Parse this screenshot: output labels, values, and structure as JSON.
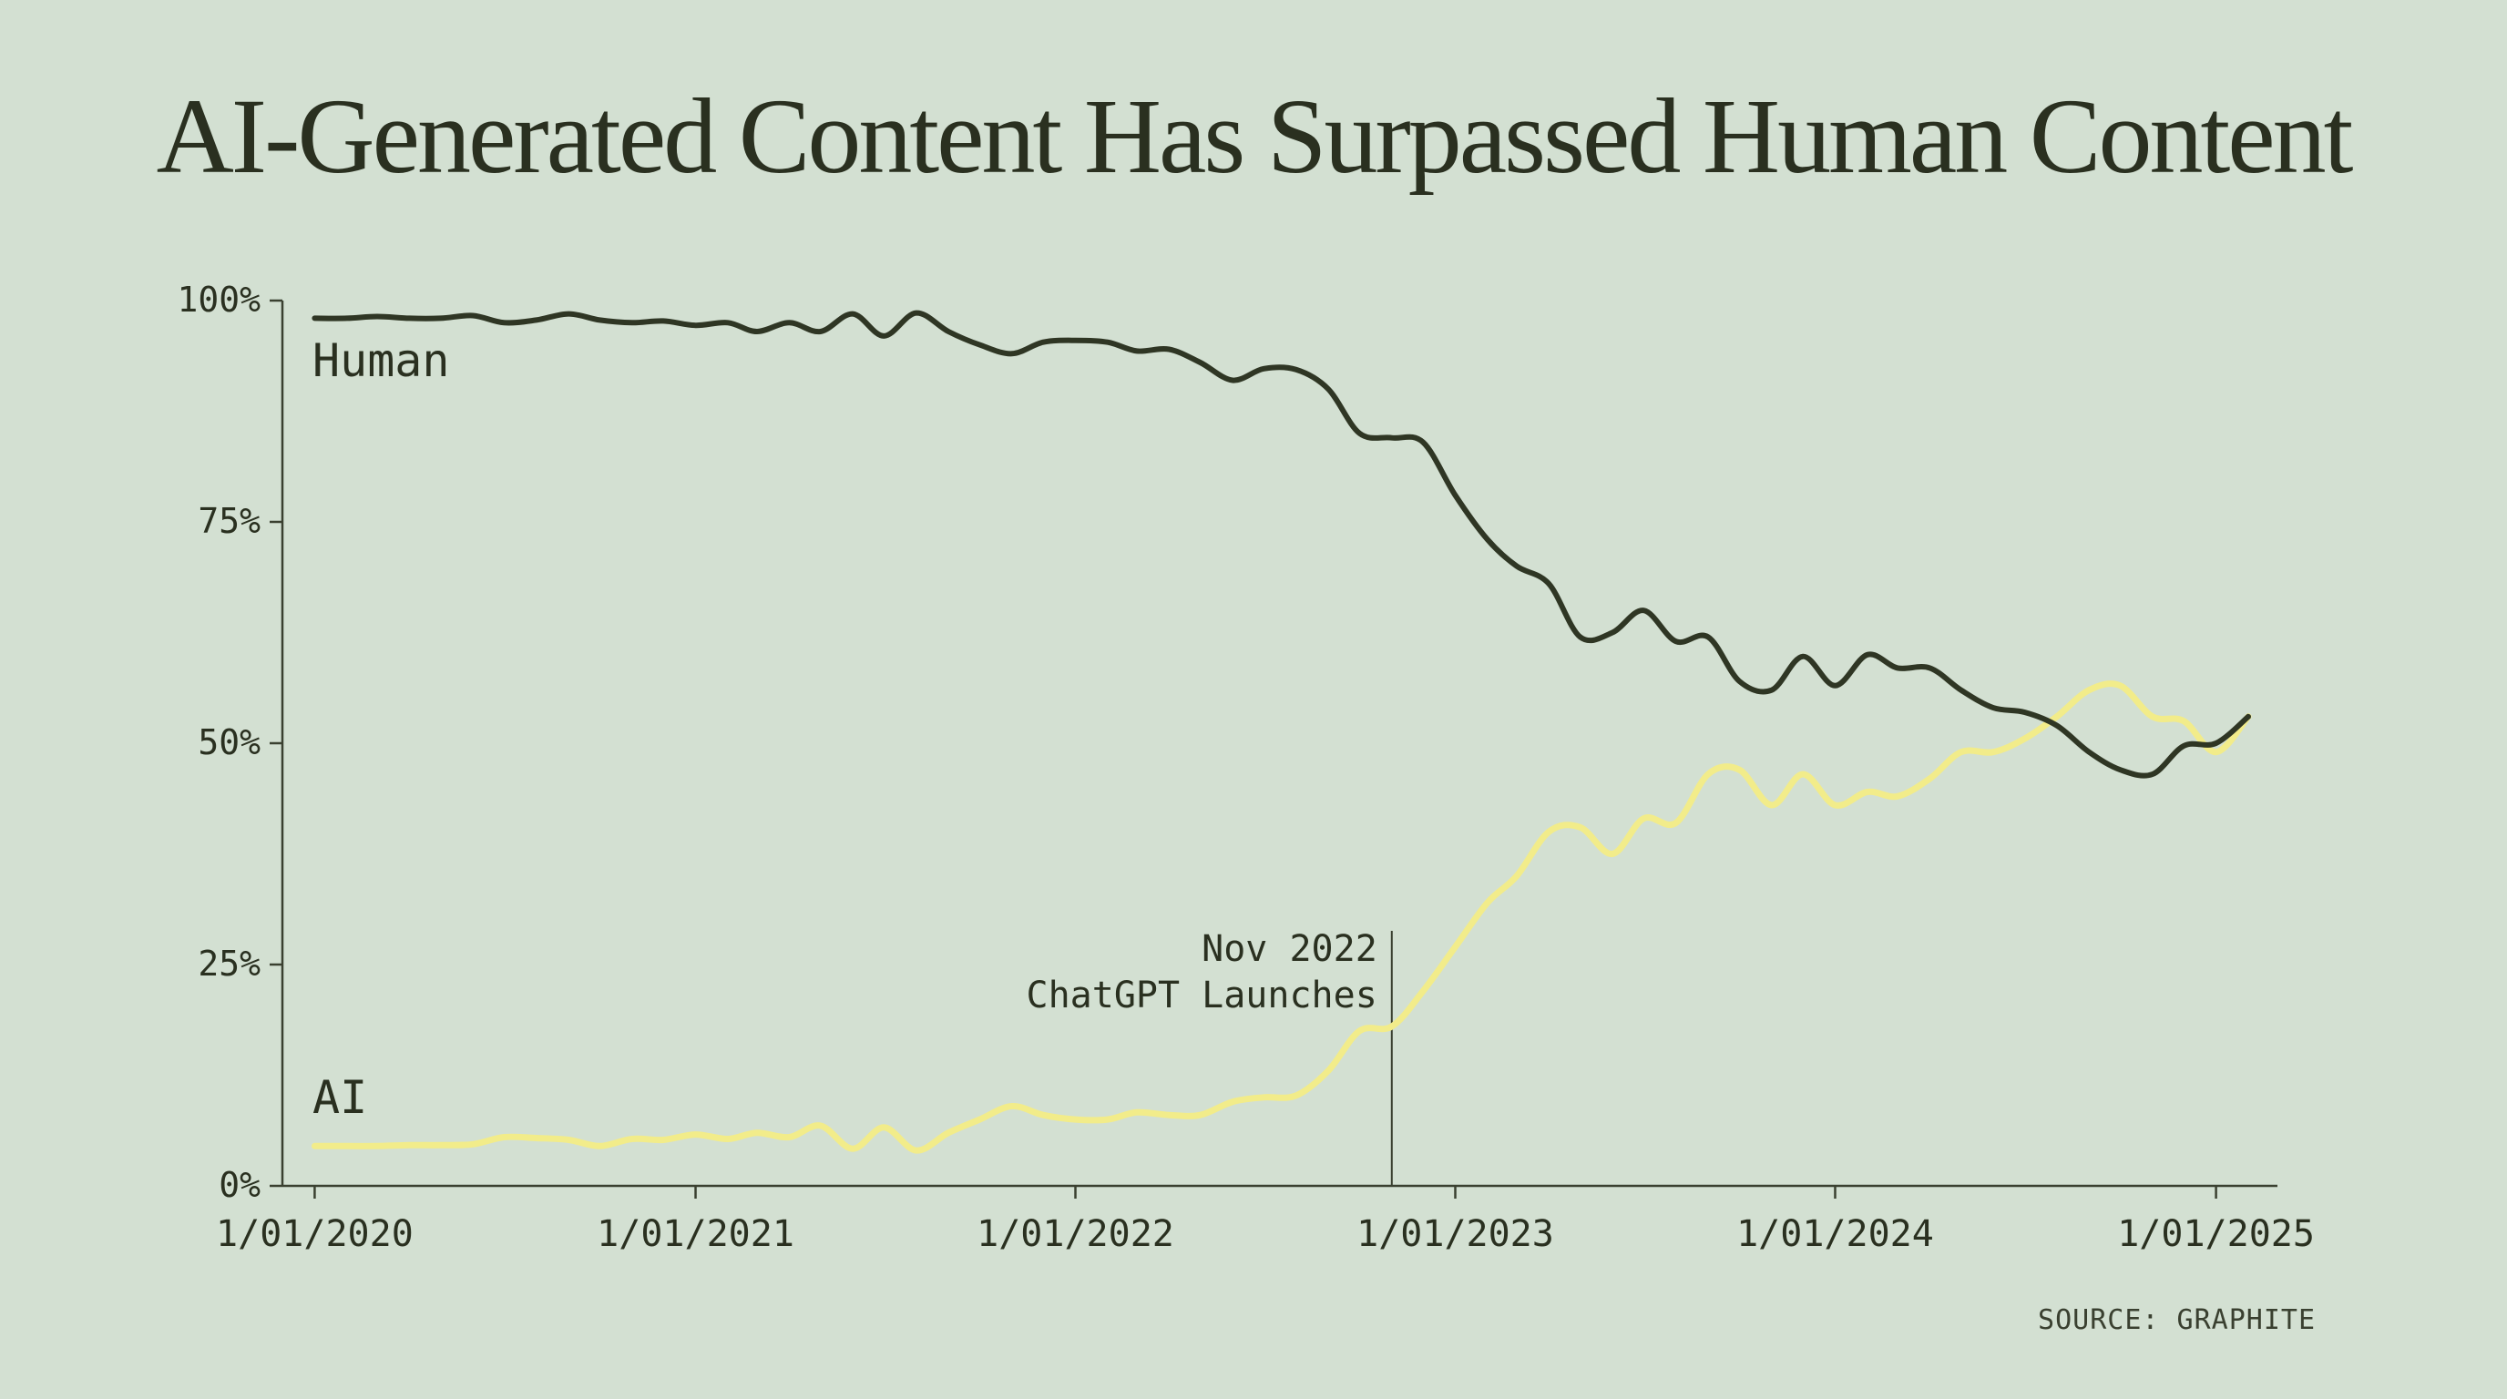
{
  "chart_data": {
    "type": "line",
    "title": "AI-Generated Content Has Surpassed Human Content",
    "xlabel": "",
    "ylabel": "",
    "ylim": [
      0,
      100
    ],
    "xlim": [
      "2019-12-01",
      "2025-03-01"
    ],
    "yticks": [
      "0%",
      "25%",
      "50%",
      "75%",
      "100%"
    ],
    "ytick_values": [
      0,
      25,
      50,
      75,
      100
    ],
    "xticks": [
      "1/01/2020",
      "1/01/2021",
      "1/01/2022",
      "1/01/2023",
      "1/01/2024",
      "1/01/2025"
    ],
    "xtick_dates": [
      "2020-01-01",
      "2021-01-01",
      "2022-01-01",
      "2023-01-01",
      "2024-01-01",
      "2025-01-01"
    ],
    "grid": false,
    "legend": "none",
    "x": [
      "2020-01-01",
      "2020-02-01",
      "2020-03-01",
      "2020-04-01",
      "2020-05-01",
      "2020-06-01",
      "2020-07-01",
      "2020-08-01",
      "2020-09-01",
      "2020-10-01",
      "2020-11-01",
      "2020-12-01",
      "2021-01-01",
      "2021-02-01",
      "2021-03-01",
      "2021-04-01",
      "2021-05-01",
      "2021-06-01",
      "2021-07-01",
      "2021-08-01",
      "2021-09-01",
      "2021-10-01",
      "2021-11-01",
      "2021-12-01",
      "2022-01-01",
      "2022-02-01",
      "2022-03-01",
      "2022-04-01",
      "2022-05-01",
      "2022-06-01",
      "2022-07-01",
      "2022-08-01",
      "2022-09-01",
      "2022-10-01",
      "2022-11-01",
      "2022-12-01",
      "2023-01-01",
      "2023-02-01",
      "2023-03-01",
      "2023-04-01",
      "2023-05-01",
      "2023-06-01",
      "2023-07-01",
      "2023-08-01",
      "2023-09-01",
      "2023-10-01",
      "2023-11-01",
      "2023-12-01",
      "2024-01-01",
      "2024-02-01",
      "2024-03-01",
      "2024-04-01",
      "2024-05-01",
      "2024-06-01",
      "2024-07-01",
      "2024-08-01",
      "2024-09-01",
      "2024-10-01",
      "2024-11-01",
      "2024-12-01",
      "2025-01-01",
      "2025-02-01"
    ],
    "series": [
      {
        "name": "Human",
        "color": "#2f3624",
        "values": [
          98,
          98,
          98.2,
          98,
          98,
          98.3,
          97.5,
          97.8,
          98.5,
          97.8,
          97.5,
          97.7,
          97.2,
          97.5,
          96.5,
          97.5,
          96.5,
          98.5,
          96,
          98.6,
          96.5,
          95,
          94,
          95.3,
          95.5,
          95.3,
          94.3,
          94.5,
          93,
          91,
          92.3,
          92.2,
          90,
          85,
          84.5,
          84,
          78,
          73,
          70,
          68,
          62,
          62.5,
          65,
          61.5,
          62,
          57,
          56,
          59.8,
          56.5,
          60,
          58.5,
          58.5,
          56,
          54,
          53.5,
          52,
          49,
          47,
          46.5,
          49.7,
          50,
          53
        ]
      },
      {
        "name": "AI",
        "color": "#f2ec8a",
        "values": [
          4.5,
          4.5,
          4.5,
          4.6,
          4.6,
          4.7,
          5.5,
          5.4,
          5.2,
          4.5,
          5.3,
          5.2,
          5.8,
          5.3,
          6,
          5.5,
          6.8,
          4.2,
          6.6,
          4,
          6,
          7.5,
          9,
          8,
          7.5,
          7.5,
          8.3,
          8,
          8,
          9.5,
          10,
          10.2,
          13,
          17.5,
          18,
          22,
          27,
          32,
          35,
          40,
          40.5,
          37.5,
          41.5,
          41,
          46.5,
          47,
          43,
          46.5,
          43,
          44.5,
          44,
          46,
          49,
          49,
          50.5,
          53,
          56,
          56.5,
          53,
          52.5,
          49,
          53
        ]
      }
    ],
    "series_labels": {
      "human": "Human",
      "ai": "AI"
    },
    "annotations": [
      {
        "x": "2022-11-01",
        "lines": [
          "Nov 2022",
          "ChatGPT Launches"
        ]
      }
    ],
    "source": "SOURCE: GRAPHITE"
  },
  "colors": {
    "background": "#d3e0d2",
    "text": "#2a3020",
    "axis": "#3a4030",
    "human_line": "#2f3624",
    "ai_line": "#f2ec8a"
  }
}
